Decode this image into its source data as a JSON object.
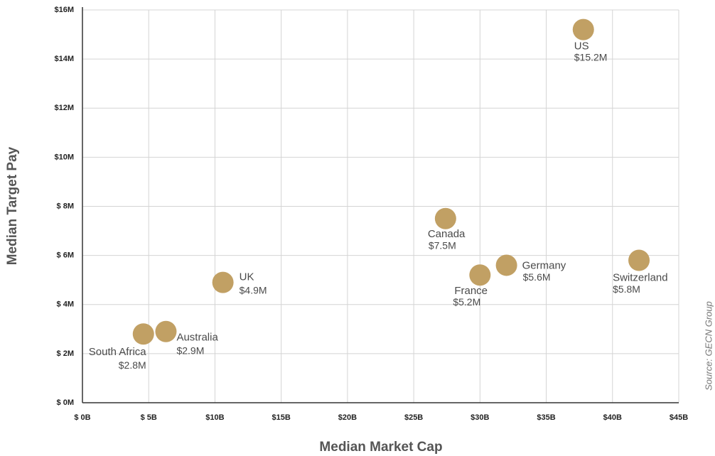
{
  "chart_data": {
    "type": "scatter",
    "xlabel": "Median Market Cap",
    "ylabel": "Median Target Pay",
    "source": "Source: GECN Group",
    "labels": [
      "South Africa",
      "Australia",
      "UK",
      "Canada",
      "France",
      "Germany",
      "Switzerland",
      "US"
    ],
    "x": [
      4.6,
      6.3,
      10.6,
      27.4,
      30.0,
      32.0,
      42.0,
      37.8
    ],
    "values": [
      2.8,
      2.9,
      4.9,
      7.5,
      5.2,
      5.6,
      5.8,
      15.2
    ],
    "value_labels": [
      "$2.8M",
      "$2.9M",
      "$4.9M",
      "$7.5M",
      "$5.2M",
      "$5.6M",
      "$5.8M",
      "$15.2M"
    ],
    "color": "#c1a064",
    "xlim": [
      0,
      45
    ],
    "ylim": [
      0,
      16
    ],
    "xticks": [
      {
        "value": 0,
        "label": "$ 0B"
      },
      {
        "value": 5,
        "label": "$ 5B"
      },
      {
        "value": 10,
        "label": "$10B"
      },
      {
        "value": 15,
        "label": "$15B"
      },
      {
        "value": 20,
        "label": "$20B"
      },
      {
        "value": 25,
        "label": "$25B"
      },
      {
        "value": 30,
        "label": "$30B"
      },
      {
        "value": 35,
        "label": "$35B"
      },
      {
        "value": 40,
        "label": "$40B"
      },
      {
        "value": 45,
        "label": "$45B"
      }
    ],
    "yticks": [
      {
        "value": 0,
        "label": "$ 0M"
      },
      {
        "value": 2,
        "label": "$ 2M"
      },
      {
        "value": 4,
        "label": "$ 4M"
      },
      {
        "value": 6,
        "label": "$ 6M"
      },
      {
        "value": 8,
        "label": "$ 8M"
      },
      {
        "value": 10,
        "label": "$10M"
      },
      {
        "value": 12,
        "label": "$12M"
      },
      {
        "value": 14,
        "label": "$14M"
      },
      {
        "value": 16,
        "label": "$16M"
      }
    ],
    "grid": true
  }
}
